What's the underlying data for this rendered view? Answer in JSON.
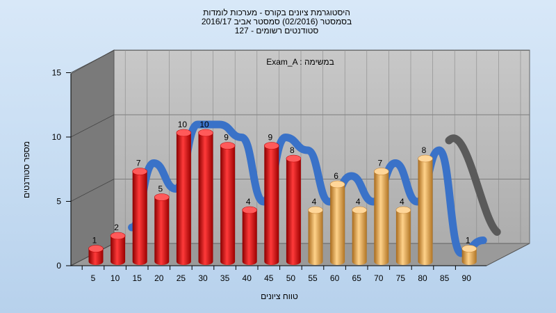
{
  "chart_data": {
    "type": "bar",
    "title_lines": [
      "היסטוגרמת ציונים בקורס - מערכות לומדות",
      "בסמסטר  (02/2016)  סמסטר אביב 2016/17",
      "סטודנטים רשומים - 127"
    ],
    "inner_label": "Exam_A : במשימה",
    "xlabel": "טווח ציונים",
    "ylabel": "מספר סטודנטים",
    "ylim": [
      0,
      15
    ],
    "yticks": [
      "0",
      "5",
      "10",
      "15"
    ],
    "categories": [
      "5",
      "10",
      "15",
      "20",
      "25",
      "30",
      "35",
      "40",
      "45",
      "50",
      "55",
      "60",
      "65",
      "70",
      "75",
      "80",
      "85",
      "90"
    ],
    "values": [
      1,
      2,
      7,
      5,
      10,
      10,
      9,
      4,
      9,
      8,
      4,
      6,
      4,
      7,
      4,
      8,
      null,
      1
    ],
    "bar_colors": [
      "red",
      "red",
      "red",
      "red",
      "red",
      "red",
      "red",
      "red",
      "red",
      "red",
      "orange",
      "orange",
      "orange",
      "orange",
      "orange",
      "orange",
      "orange",
      "orange"
    ],
    "trend_line": true,
    "grid": true,
    "colors": {
      "red": "#e01818",
      "orange": "#e8a848",
      "trend_blue": "#3a72c8",
      "trend_gray": "#5a5a5a",
      "wall": "#b8b8b8",
      "side_wall": "#7a7a7a",
      "floor": "#9a9a9a"
    }
  }
}
